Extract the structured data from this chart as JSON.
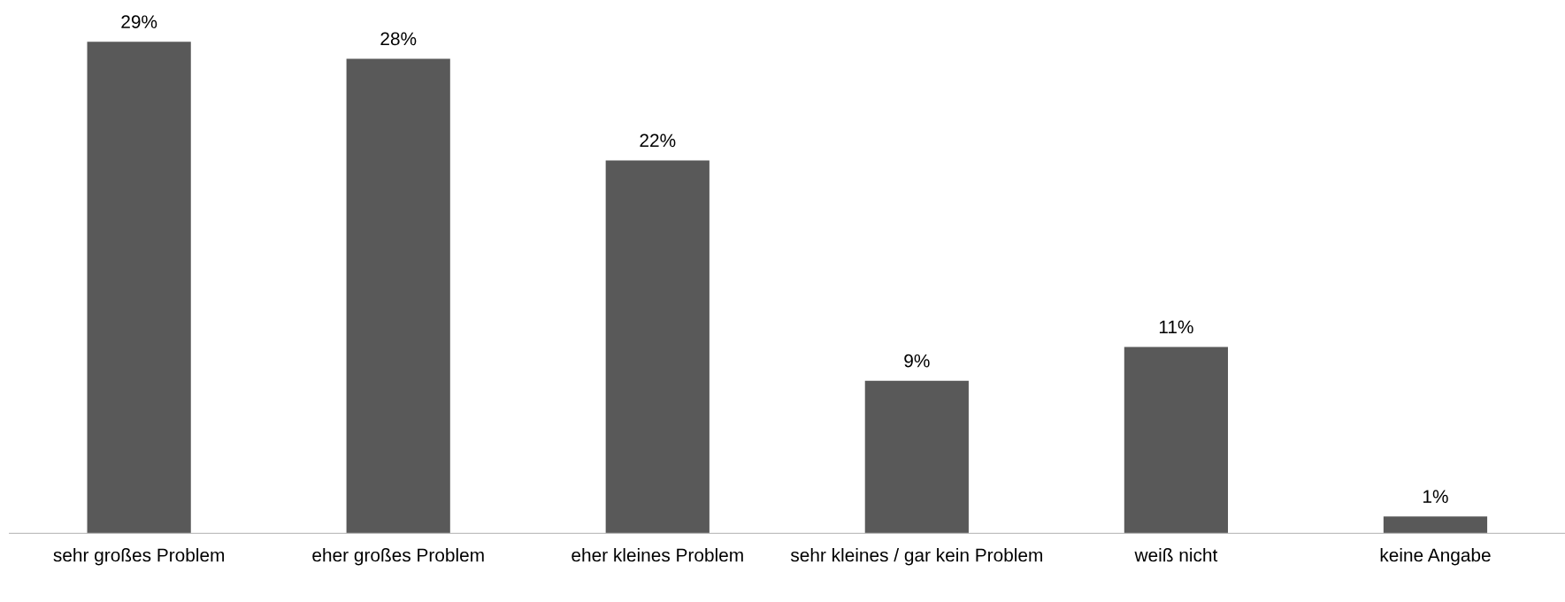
{
  "chart_data": {
    "type": "bar",
    "categories": [
      "sehr großes Problem",
      "eher großes Problem",
      "eher kleines Problem",
      "sehr kleines / gar kein Problem",
      "weiß nicht",
      "keine Angabe"
    ],
    "values": [
      29,
      28,
      22,
      9,
      11,
      1
    ],
    "value_labels": [
      "29%",
      "28%",
      "22%",
      "9%",
      "11%",
      "1%"
    ],
    "color": "#595959",
    "grid": false,
    "legend": false
  }
}
